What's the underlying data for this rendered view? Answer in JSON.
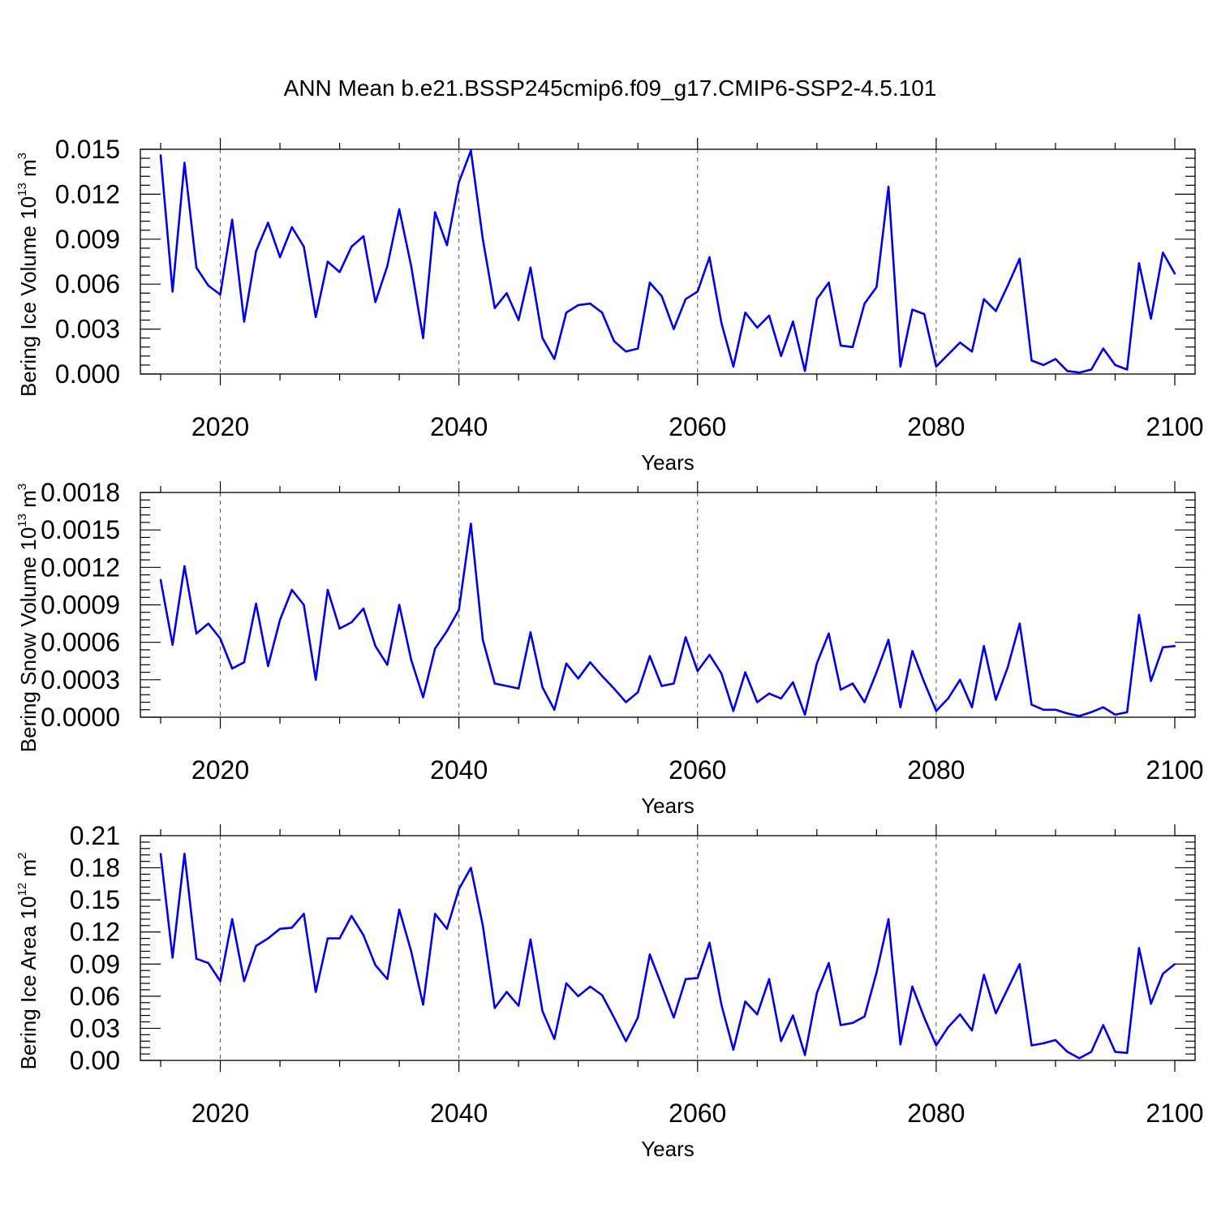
{
  "title": "ANN Mean b.e21.BSSP245cmip6.f09_g17.CMIP6-SSP2-4.5.101",
  "colors": {
    "line": "#0000ee",
    "axis": "#000000",
    "grid": "#555555"
  },
  "chart_data": [
    {
      "type": "line",
      "name": "ice-volume",
      "ylabel_main": "Bering Ice Volume 10",
      "ylabel_exp": "13",
      "ylabel_unit": " m",
      "ylabel_unit_exp": "3",
      "xlabel": "Years",
      "xlim": [
        2015,
        2100
      ],
      "ylim": [
        0,
        0.015
      ],
      "yticks": [
        "0.000",
        "0.003",
        "0.006",
        "0.009",
        "0.012",
        "0.015"
      ],
      "xticks": [
        "2020",
        "2040",
        "2060",
        "2080",
        "2100"
      ],
      "grid_x": [
        2020,
        2040,
        2060,
        2080
      ],
      "x_start": 2015,
      "values": [
        0.0146,
        0.0055,
        0.0141,
        0.0071,
        0.0059,
        0.0053,
        0.0103,
        0.0035,
        0.0082,
        0.0101,
        0.0078,
        0.0098,
        0.0085,
        0.0038,
        0.0075,
        0.0068,
        0.0085,
        0.0092,
        0.0048,
        0.0072,
        0.011,
        0.0072,
        0.0024,
        0.0108,
        0.0086,
        0.0128,
        0.0149,
        0.009,
        0.0044,
        0.0054,
        0.0036,
        0.0071,
        0.0024,
        0.001,
        0.0041,
        0.0046,
        0.0047,
        0.0041,
        0.0022,
        0.0015,
        0.0017,
        0.0061,
        0.0052,
        0.003,
        0.005,
        0.0055,
        0.0078,
        0.0034,
        0.0005,
        0.0041,
        0.0031,
        0.0039,
        0.0012,
        0.0035,
        0.0002,
        0.005,
        0.0061,
        0.0019,
        0.0018,
        0.0047,
        0.0058,
        0.0125,
        0.0005,
        0.0043,
        0.004,
        0.0005,
        0.0013,
        0.0021,
        0.0015,
        0.005,
        0.0042,
        0.0059,
        0.0077,
        0.0009,
        0.0006,
        0.001,
        0.0002,
        0.0001,
        0.0003,
        0.0017,
        0.0006,
        0.0003,
        0.0074,
        0.0037,
        0.0081,
        0.0067
      ]
    },
    {
      "type": "line",
      "name": "snow-volume",
      "ylabel_main": "Bering Snow Volume 10",
      "ylabel_exp": "13",
      "ylabel_unit": " m",
      "ylabel_unit_exp": "3",
      "xlabel": "Years",
      "xlim": [
        2015,
        2100
      ],
      "ylim": [
        0,
        0.0018
      ],
      "yticks": [
        "0.0000",
        "0.0003",
        "0.0006",
        "0.0009",
        "0.0012",
        "0.0015",
        "0.0018"
      ],
      "xticks": [
        "2020",
        "2040",
        "2060",
        "2080",
        "2100"
      ],
      "grid_x": [
        2020,
        2040,
        2060,
        2080
      ],
      "x_start": 2015,
      "values": [
        0.0011,
        0.00058,
        0.00121,
        0.00067,
        0.00075,
        0.00063,
        0.00039,
        0.00044,
        0.00091,
        0.00041,
        0.00078,
        0.00102,
        0.0009,
        0.0003,
        0.00102,
        0.00071,
        0.00076,
        0.00087,
        0.00057,
        0.00042,
        0.0009,
        0.00046,
        0.00016,
        0.00055,
        0.00069,
        0.00086,
        0.00155,
        0.00062,
        0.00027,
        0.00025,
        0.00023,
        0.00068,
        0.00024,
        6e-05,
        0.00043,
        0.00031,
        0.00044,
        0.00033,
        0.00023,
        0.00012,
        0.0002,
        0.00049,
        0.00025,
        0.00027,
        0.00064,
        0.00037,
        0.0005,
        0.00035,
        5e-05,
        0.00036,
        0.00012,
        0.00019,
        0.00015,
        0.00028,
        2e-05,
        0.00043,
        0.00067,
        0.00022,
        0.00027,
        0.00012,
        0.00036,
        0.00062,
        8e-05,
        0.00053,
        0.00028,
        5e-05,
        0.00015,
        0.0003,
        8e-05,
        0.00057,
        0.00014,
        0.0004,
        0.00075,
        0.0001,
        6e-05,
        6e-05,
        3e-05,
        1e-05,
        4e-05,
        8e-05,
        2e-05,
        4e-05,
        0.00082,
        0.00029,
        0.00056,
        0.00057
      ]
    },
    {
      "type": "line",
      "name": "ice-area",
      "ylabel_main": "Bering Ice Area 10",
      "ylabel_exp": "12",
      "ylabel_unit": " m",
      "ylabel_unit_exp": "2",
      "xlabel": "Years",
      "xlim": [
        2015,
        2100
      ],
      "ylim": [
        0,
        0.21
      ],
      "yticks": [
        "0.00",
        "0.03",
        "0.06",
        "0.09",
        "0.12",
        "0.15",
        "0.18",
        "0.21"
      ],
      "xticks": [
        "2020",
        "2040",
        "2060",
        "2080",
        "2100"
      ],
      "grid_x": [
        2020,
        2040,
        2060,
        2080
      ],
      "x_start": 2015,
      "values": [
        0.193,
        0.096,
        0.193,
        0.095,
        0.091,
        0.074,
        0.132,
        0.074,
        0.107,
        0.114,
        0.123,
        0.124,
        0.137,
        0.064,
        0.114,
        0.114,
        0.135,
        0.117,
        0.089,
        0.076,
        0.141,
        0.102,
        0.052,
        0.137,
        0.123,
        0.16,
        0.18,
        0.126,
        0.049,
        0.064,
        0.051,
        0.113,
        0.046,
        0.02,
        0.072,
        0.06,
        0.069,
        0.061,
        0.04,
        0.018,
        0.04,
        0.099,
        0.07,
        0.04,
        0.076,
        0.077,
        0.11,
        0.052,
        0.01,
        0.055,
        0.043,
        0.076,
        0.018,
        0.042,
        0.005,
        0.063,
        0.091,
        0.033,
        0.035,
        0.041,
        0.082,
        0.132,
        0.015,
        0.069,
        0.04,
        0.014,
        0.031,
        0.043,
        0.028,
        0.08,
        0.044,
        0.067,
        0.09,
        0.014,
        0.016,
        0.019,
        0.008,
        0.002,
        0.008,
        0.033,
        0.008,
        0.007,
        0.105,
        0.053,
        0.081,
        0.09
      ]
    }
  ]
}
